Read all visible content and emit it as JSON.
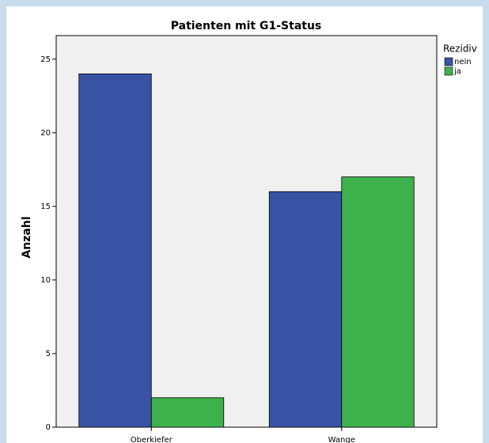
{
  "chart_data": {
    "type": "bar",
    "title": "Patienten mit G1-Status",
    "y_label": "Anzahl",
    "legend_title": "Rezidiv",
    "categories": [
      "Oberkiefer",
      "Wange"
    ],
    "series": [
      {
        "name": "nein",
        "color": "#3953a4",
        "values": [
          24,
          16
        ]
      },
      {
        "name": "ja",
        "color": "#3db14b",
        "values": [
          2,
          17
        ]
      }
    ],
    "ylim": [
      0,
      26.6
    ],
    "yticks": [
      0,
      5,
      10,
      15,
      20,
      25
    ],
    "grid": false,
    "legend": "right"
  }
}
